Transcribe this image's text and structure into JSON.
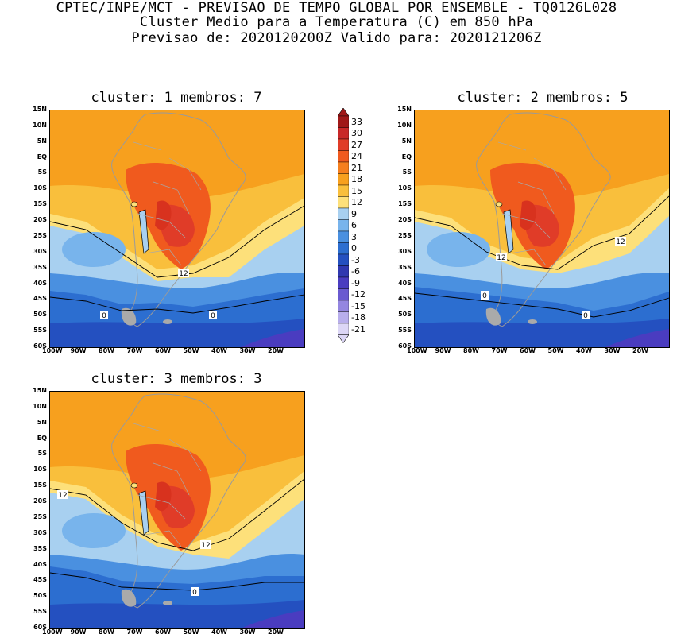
{
  "header": {
    "line1": "CPTEC/INPE/MCT - PREVISAO DE TEMPO GLOBAL POR ENSEMBLE - TQ0126L028",
    "line2": "Cluster Medio para a Temperatura (C) em 850 hPa",
    "line3": "Previsao de: 2020120200Z   Valido para: 2020121206Z"
  },
  "panels": [
    {
      "title": "cluster: 1  membros: 7",
      "contour_labels": [
        "12",
        "0",
        "0"
      ]
    },
    {
      "title": "cluster: 2  membros: 5",
      "contour_labels": [
        "12",
        "12",
        "0",
        "0"
      ]
    },
    {
      "title": "cluster: 3  membros: 3",
      "contour_labels": [
        "12",
        "12",
        "0"
      ]
    }
  ],
  "lat_labels": [
    "15N",
    "10N",
    "5N",
    "EQ",
    "5S",
    "10S",
    "15S",
    "20S",
    "25S",
    "30S",
    "35S",
    "40S",
    "45S",
    "50S",
    "55S",
    "60S"
  ],
  "lon_labels": [
    "100W",
    "90W",
    "80W",
    "70W",
    "60W",
    "50W",
    "40W",
    "30W",
    "20W"
  ],
  "colorbar": {
    "labels": [
      "33",
      "30",
      "27",
      "24",
      "21",
      "18",
      "15",
      "12",
      "9",
      "6",
      "3",
      "0",
      "-3",
      "-6",
      "-9",
      "-12",
      "-15",
      "-18",
      "-21"
    ],
    "colors": [
      "#a01818",
      "#c82828",
      "#e03c28",
      "#f05a1e",
      "#f57f1e",
      "#f7a01e",
      "#f9bf3c",
      "#fde07a",
      "#a8d0f0",
      "#78b4ec",
      "#4a90e0",
      "#2c6ed0",
      "#2450c0",
      "#3038b0",
      "#4a3cc0",
      "#6a5ad0",
      "#9486e0",
      "#b8aeec",
      "#dcd6f6"
    ]
  },
  "colors": {
    "tropical": "#f7a01e",
    "warm_land": "#f05a1e",
    "hot_core": "#e03c28",
    "mid": "#f9bf3c",
    "cool": "#fde07a",
    "cold1": "#a8d0f0",
    "cold2": "#78b4ec",
    "cold3": "#4a90e0",
    "cold4": "#2c6ed0",
    "cold5": "#2450c0",
    "ice": "#4a3cc0"
  }
}
